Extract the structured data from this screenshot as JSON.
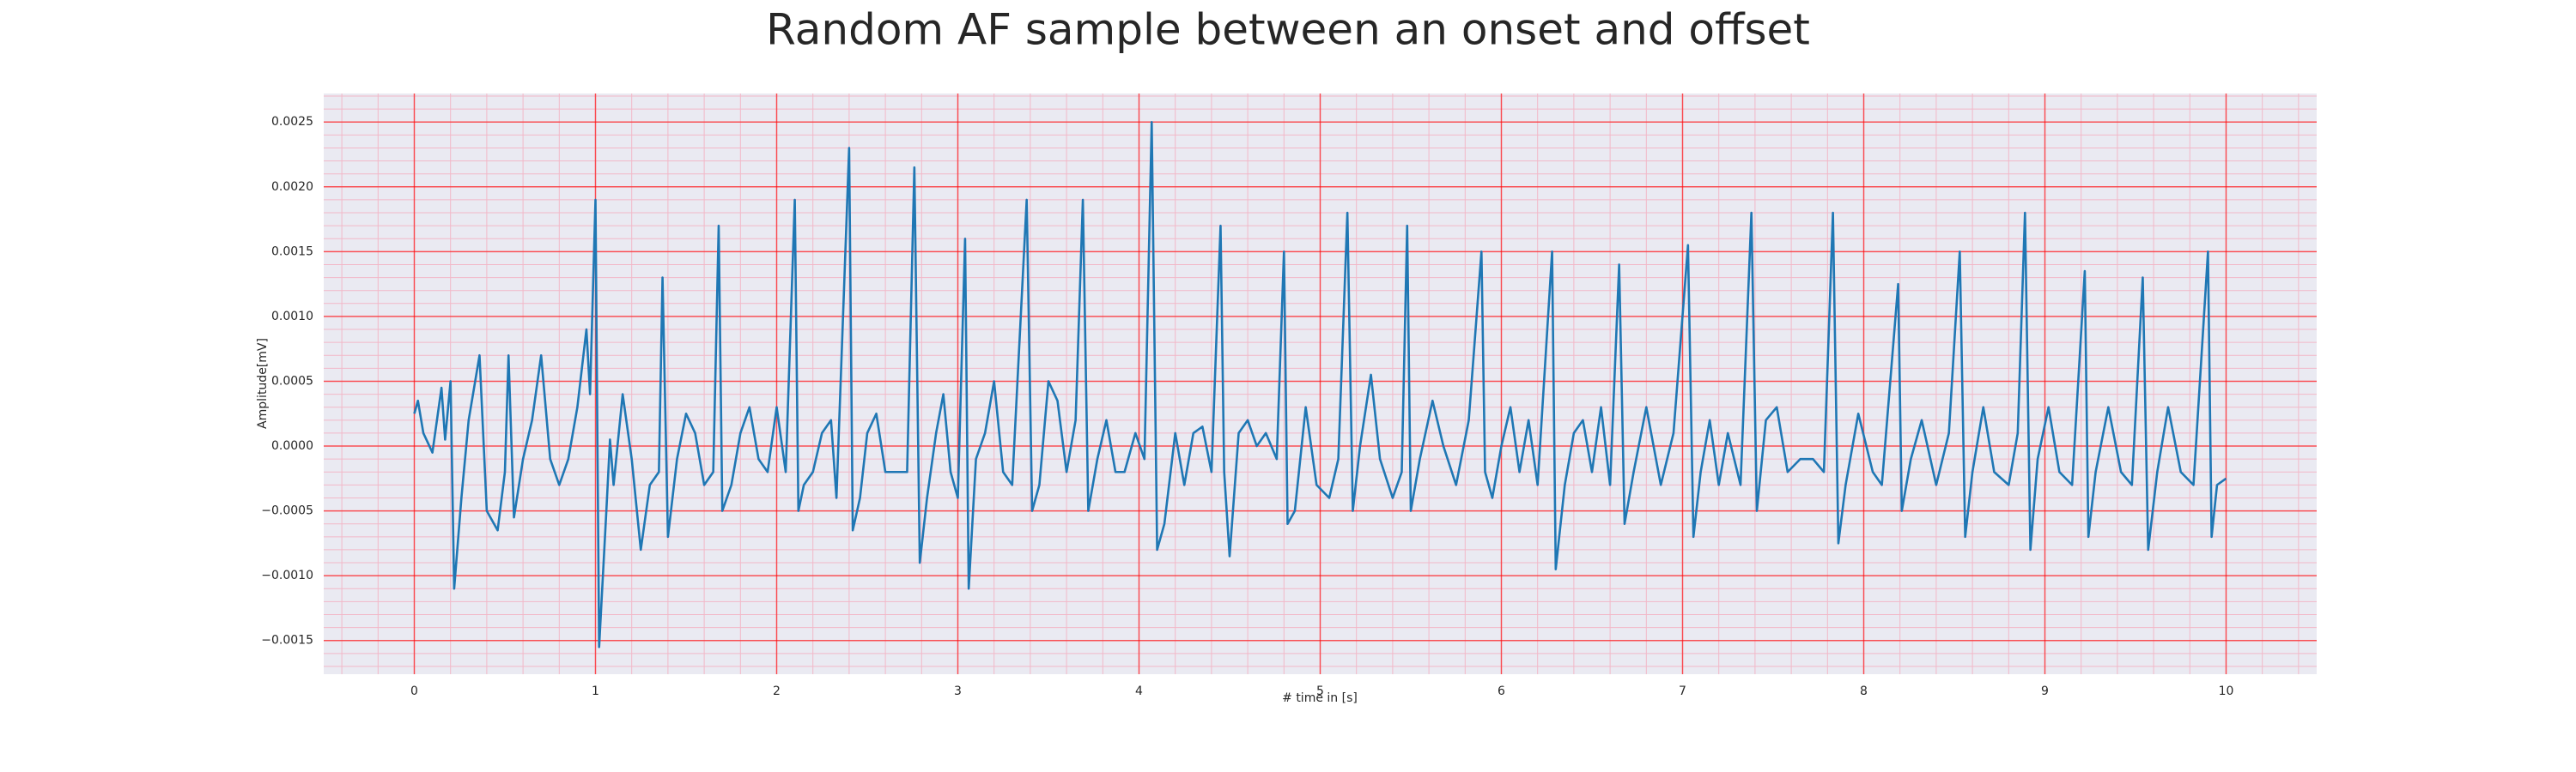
{
  "chart_data": {
    "type": "line",
    "title": "Random AF sample between an onset and offset",
    "x_label": "# time in [s]",
    "y_label": "Amplitude[mV]",
    "xlim": [
      -0.5,
      10.5
    ],
    "ylim": [
      -0.00176,
      0.00272
    ],
    "xticks": [
      0,
      1,
      2,
      3,
      4,
      5,
      6,
      7,
      8,
      9,
      10
    ],
    "yticks": [
      {
        "value": -0.0015,
        "label": "−0.0015"
      },
      {
        "value": -0.001,
        "label": "−0.0010"
      },
      {
        "value": -0.0005,
        "label": "−0.0005"
      },
      {
        "value": 0,
        "label": "0.0000"
      },
      {
        "value": 0.0005,
        "label": "0.0005"
      },
      {
        "value": 0.001,
        "label": "0.0010"
      },
      {
        "value": 0.0015,
        "label": "0.0015"
      },
      {
        "value": 0.002,
        "label": "0.0020"
      },
      {
        "value": 0.0025,
        "label": "0.0025"
      }
    ],
    "grid": true,
    "minor_grid": true,
    "background": "#eaeaf2",
    "grid_color": "#ff0000",
    "minor_grid_color": "#f2b8c8",
    "color": "#1f77b4",
    "x": [
      0,
      0.02,
      0.05,
      0.1,
      0.15,
      0.17,
      0.2,
      0.22,
      0.26,
      0.3,
      0.36,
      0.4,
      0.46,
      0.5,
      0.52,
      0.55,
      0.6,
      0.65,
      0.7,
      0.75,
      0.8,
      0.85,
      0.9,
      0.95,
      0.97,
      1.0,
      1.02,
      1.06,
      1.08,
      1.1,
      1.15,
      1.2,
      1.25,
      1.3,
      1.35,
      1.37,
      1.4,
      1.45,
      1.5,
      1.55,
      1.6,
      1.65,
      1.68,
      1.7,
      1.75,
      1.8,
      1.85,
      1.9,
      1.95,
      2.0,
      2.05,
      2.1,
      2.12,
      2.15,
      2.2,
      2.25,
      2.3,
      2.33,
      2.4,
      2.42,
      2.46,
      2.5,
      2.55,
      2.6,
      2.65,
      2.72,
      2.76,
      2.79,
      2.83,
      2.88,
      2.92,
      2.96,
      3.0,
      3.04,
      3.06,
      3.1,
      3.15,
      3.2,
      3.25,
      3.3,
      3.38,
      3.41,
      3.45,
      3.5,
      3.55,
      3.6,
      3.65,
      3.69,
      3.72,
      3.77,
      3.82,
      3.87,
      3.92,
      3.98,
      4.03,
      4.07,
      4.1,
      4.14,
      4.2,
      4.25,
      4.3,
      4.35,
      4.4,
      4.45,
      4.47,
      4.5,
      4.55,
      4.6,
      4.65,
      4.7,
      4.76,
      4.8,
      4.82,
      4.86,
      4.92,
      4.98,
      5.05,
      5.1,
      5.15,
      5.18,
      5.22,
      5.28,
      5.33,
      5.4,
      5.45,
      5.48,
      5.5,
      5.55,
      5.62,
      5.68,
      5.75,
      5.82,
      5.89,
      5.91,
      5.95,
      6.0,
      6.05,
      6.1,
      6.15,
      6.2,
      6.28,
      6.3,
      6.35,
      6.4,
      6.45,
      6.5,
      6.55,
      6.6,
      6.65,
      6.68,
      6.73,
      6.8,
      6.88,
      6.95,
      7.03,
      7.06,
      7.1,
      7.15,
      7.2,
      7.25,
      7.32,
      7.38,
      7.41,
      7.46,
      7.52,
      7.58,
      7.65,
      7.72,
      7.78,
      7.83,
      7.86,
      7.9,
      7.97,
      8.05,
      8.1,
      8.19,
      8.21,
      8.26,
      8.32,
      8.4,
      8.47,
      8.53,
      8.56,
      8.6,
      8.66,
      8.72,
      8.8,
      8.85,
      8.89,
      8.92,
      8.96,
      9.02,
      9.08,
      9.15,
      9.22,
      9.24,
      9.28,
      9.35,
      9.42,
      9.48,
      9.54,
      9.57,
      9.62,
      9.68,
      9.75,
      9.82,
      9.9,
      9.92,
      9.95,
      10.0
    ],
    "values": [
      0.00025,
      0.00035,
      0.0001,
      -5e-05,
      0.00045,
      5e-05,
      0.0005,
      -0.0011,
      -0.0004,
      0.0002,
      0.0007,
      -0.0005,
      -0.00065,
      -0.0002,
      0.0007,
      -0.00055,
      -0.0001,
      0.0002,
      0.0007,
      -0.0001,
      -0.0003,
      -0.0001,
      0.0003,
      0.0009,
      0.0004,
      0.0019,
      -0.00155,
      -0.0005,
      5e-05,
      -0.0003,
      0.0004,
      -0.0001,
      -0.0008,
      -0.0003,
      -0.0002,
      0.0013,
      -0.0007,
      -0.0001,
      0.00025,
      0.0001,
      -0.0003,
      -0.0002,
      0.0017,
      -0.0005,
      -0.0003,
      0.0001,
      0.0003,
      -0.0001,
      -0.0002,
      0.0003,
      -0.0002,
      0.0019,
      -0.0005,
      -0.0003,
      -0.0002,
      0.0001,
      0.0002,
      -0.0004,
      0.0023,
      -0.00065,
      -0.0004,
      0.0001,
      0.00025,
      -0.0002,
      -0.0002,
      -0.0002,
      0.00215,
      -0.0009,
      -0.0004,
      0.0001,
      0.0004,
      -0.0002,
      -0.0004,
      0.0016,
      -0.0011,
      -0.0001,
      0.0001,
      0.0005,
      -0.0002,
      -0.0003,
      0.0019,
      -0.0005,
      -0.0003,
      0.0005,
      0.00035,
      -0.0002,
      0.0002,
      0.0019,
      -0.0005,
      -0.0001,
      0.0002,
      -0.0002,
      -0.0002,
      0.0001,
      -0.0001,
      0.0025,
      -0.0008,
      -0.0006,
      0.0001,
      -0.0003,
      0.0001,
      0.00015,
      -0.0002,
      0.0017,
      -0.0002,
      -0.00085,
      0.0001,
      0.0002,
      0,
      0.0001,
      -0.0001,
      0.0015,
      -0.0006,
      -0.0005,
      0.0003,
      -0.0003,
      -0.0004,
      -0.0001,
      0.0018,
      -0.0005,
      0,
      0.00055,
      -0.0001,
      -0.0004,
      -0.0002,
      0.0017,
      -0.0005,
      -0.0001,
      0.00035,
      0,
      -0.0003,
      0.0002,
      0.0015,
      -0.0002,
      -0.0004,
      0,
      0.0003,
      -0.0002,
      0.0002,
      -0.0003,
      0.0015,
      -0.00095,
      -0.0003,
      0.0001,
      0.0002,
      -0.0002,
      0.0003,
      -0.0003,
      0.0014,
      -0.0006,
      -0.0002,
      0.0003,
      -0.0003,
      0.0001,
      0.00155,
      -0.0007,
      -0.0002,
      0.0002,
      -0.0003,
      0.0001,
      -0.0003,
      0.0018,
      -0.0005,
      0.0002,
      0.0003,
      -0.0002,
      -0.0001,
      -0.0001,
      -0.0002,
      0.0018,
      -0.00075,
      -0.0003,
      0.00025,
      -0.0002,
      -0.0003,
      0.00125,
      -0.0005,
      -0.0001,
      0.0002,
      -0.0003,
      0.0001,
      0.0015,
      -0.0007,
      -0.0002,
      0.0003,
      -0.0002,
      -0.0003,
      0.0001,
      0.0018,
      -0.0008,
      -0.0001,
      0.0003,
      -0.0002,
      -0.0003,
      0.00135,
      -0.0007,
      -0.0002,
      0.0003,
      -0.0002,
      -0.0003,
      0.0013,
      -0.0008,
      -0.0002,
      0.0003,
      -0.0002,
      -0.0003,
      0.0015,
      -0.0007,
      -0.0003,
      -0.00025
    ]
  }
}
